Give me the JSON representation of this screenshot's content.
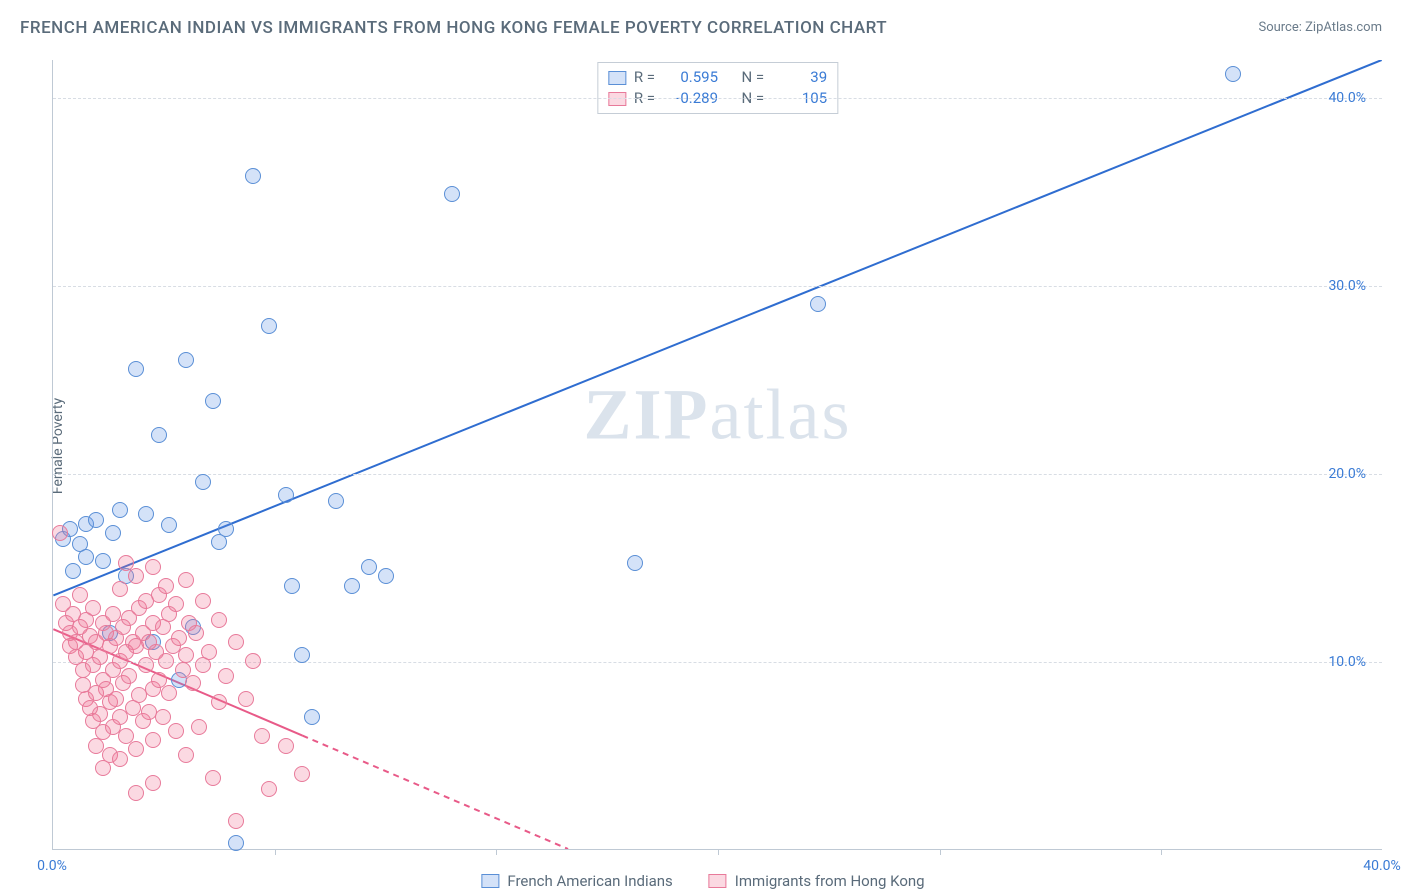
{
  "title": "FRENCH AMERICAN INDIAN VS IMMIGRANTS FROM HONG KONG FEMALE POVERTY CORRELATION CHART",
  "source": "Source: ZipAtlas.com",
  "ylabel": "Female Poverty",
  "watermark": {
    "bold": "ZIP",
    "light": "atlas"
  },
  "chart": {
    "type": "scatter",
    "xlim": [
      0,
      40
    ],
    "ylim": [
      0,
      42
    ],
    "yticks": [
      {
        "v": 10,
        "label": "10.0%"
      },
      {
        "v": 20,
        "label": "20.0%"
      },
      {
        "v": 30,
        "label": "30.0%"
      },
      {
        "v": 40,
        "label": "40.0%"
      }
    ],
    "xticks_major": [
      0,
      40
    ],
    "xtick_labels": [
      {
        "v": 0,
        "label": "0.0%"
      },
      {
        "v": 40,
        "label": "40.0%"
      }
    ],
    "xticks_minor": [
      6.67,
      13.33,
      20,
      26.67,
      33.33
    ],
    "grid_color": "#d8dde4",
    "axis_color": "#bfc9d4",
    "background_color": "#ffffff",
    "marker_radius": 8,
    "marker_stroke": 1,
    "series": [
      {
        "key": "blue",
        "label": "French American Indians",
        "fill": "rgba(100,150,230,0.28)",
        "stroke": "#5a8fd6",
        "R": "0.595",
        "N": "39",
        "trend": {
          "x1": 0,
          "y1": 13.5,
          "x2": 40,
          "y2": 42,
          "color": "#2f6dd0",
          "width": 2,
          "dash_after_x": null
        },
        "points": [
          [
            0.3,
            16.5
          ],
          [
            0.5,
            17.0
          ],
          [
            0.8,
            16.2
          ],
          [
            1.0,
            17.3
          ],
          [
            1.3,
            17.5
          ],
          [
            1.5,
            15.3
          ],
          [
            1.8,
            16.8
          ],
          [
            2.0,
            18.0
          ],
          [
            1.0,
            15.5
          ],
          [
            2.5,
            25.5
          ],
          [
            3.2,
            22.0
          ],
          [
            3.5,
            17.2
          ],
          [
            4.0,
            26.0
          ],
          [
            4.5,
            19.5
          ],
          [
            4.8,
            23.8
          ],
          [
            5.0,
            16.3
          ],
          [
            5.2,
            17.0
          ],
          [
            6.0,
            35.8
          ],
          [
            6.5,
            27.8
          ],
          [
            7.0,
            18.8
          ],
          [
            7.2,
            14.0
          ],
          [
            7.5,
            10.3
          ],
          [
            7.8,
            7.0
          ],
          [
            8.5,
            18.5
          ],
          [
            9.0,
            14.0
          ],
          [
            9.5,
            15.0
          ],
          [
            10.0,
            14.5
          ],
          [
            12.0,
            34.8
          ],
          [
            17.5,
            15.2
          ],
          [
            23.0,
            29.0
          ],
          [
            35.5,
            41.2
          ],
          [
            2.2,
            14.5
          ],
          [
            3.0,
            11.0
          ],
          [
            4.2,
            11.8
          ],
          [
            5.5,
            0.3
          ],
          [
            3.8,
            9.0
          ],
          [
            1.7,
            11.5
          ],
          [
            2.8,
            17.8
          ],
          [
            0.6,
            14.8
          ]
        ]
      },
      {
        "key": "pink",
        "label": "Immigrants from Hong Kong",
        "fill": "rgba(240,120,150,0.28)",
        "stroke": "#e87a9a",
        "R": "-0.289",
        "N": "105",
        "trend": {
          "x1": 0,
          "y1": 11.7,
          "x2": 15.5,
          "y2": 0,
          "color": "#e85a88",
          "width": 2,
          "dash_after_x": 7.5
        },
        "points": [
          [
            0.2,
            16.8
          ],
          [
            0.3,
            13.0
          ],
          [
            0.4,
            12.0
          ],
          [
            0.5,
            11.5
          ],
          [
            0.5,
            10.8
          ],
          [
            0.6,
            12.5
          ],
          [
            0.7,
            11.0
          ],
          [
            0.7,
            10.2
          ],
          [
            0.8,
            13.5
          ],
          [
            0.8,
            11.8
          ],
          [
            0.9,
            9.5
          ],
          [
            0.9,
            8.7
          ],
          [
            1.0,
            12.2
          ],
          [
            1.0,
            10.5
          ],
          [
            1.0,
            8.0
          ],
          [
            1.1,
            11.3
          ],
          [
            1.1,
            7.5
          ],
          [
            1.2,
            12.8
          ],
          [
            1.2,
            9.8
          ],
          [
            1.2,
            6.8
          ],
          [
            1.3,
            11.0
          ],
          [
            1.3,
            8.3
          ],
          [
            1.3,
            5.5
          ],
          [
            1.4,
            10.2
          ],
          [
            1.4,
            7.2
          ],
          [
            1.5,
            12.0
          ],
          [
            1.5,
            9.0
          ],
          [
            1.5,
            6.2
          ],
          [
            1.5,
            4.3
          ],
          [
            1.6,
            11.5
          ],
          [
            1.6,
            8.5
          ],
          [
            1.7,
            10.8
          ],
          [
            1.7,
            7.8
          ],
          [
            1.7,
            5.0
          ],
          [
            1.8,
            12.5
          ],
          [
            1.8,
            9.5
          ],
          [
            1.8,
            6.5
          ],
          [
            1.9,
            11.2
          ],
          [
            1.9,
            8.0
          ],
          [
            2.0,
            13.8
          ],
          [
            2.0,
            10.0
          ],
          [
            2.0,
            7.0
          ],
          [
            2.0,
            4.8
          ],
          [
            2.1,
            11.8
          ],
          [
            2.1,
            8.8
          ],
          [
            2.2,
            15.2
          ],
          [
            2.2,
            10.5
          ],
          [
            2.2,
            6.0
          ],
          [
            2.3,
            12.3
          ],
          [
            2.3,
            9.2
          ],
          [
            2.4,
            11.0
          ],
          [
            2.4,
            7.5
          ],
          [
            2.5,
            14.5
          ],
          [
            2.5,
            10.8
          ],
          [
            2.5,
            5.3
          ],
          [
            2.6,
            12.8
          ],
          [
            2.6,
            8.2
          ],
          [
            2.7,
            11.5
          ],
          [
            2.7,
            6.8
          ],
          [
            2.8,
            13.2
          ],
          [
            2.8,
            9.8
          ],
          [
            2.9,
            11.0
          ],
          [
            2.9,
            7.3
          ],
          [
            3.0,
            15.0
          ],
          [
            3.0,
            12.0
          ],
          [
            3.0,
            8.5
          ],
          [
            3.0,
            5.8
          ],
          [
            3.1,
            10.5
          ],
          [
            3.2,
            13.5
          ],
          [
            3.2,
            9.0
          ],
          [
            3.3,
            11.8
          ],
          [
            3.3,
            7.0
          ],
          [
            3.4,
            14.0
          ],
          [
            3.4,
            10.0
          ],
          [
            3.5,
            12.5
          ],
          [
            3.5,
            8.3
          ],
          [
            3.6,
            10.8
          ],
          [
            3.7,
            13.0
          ],
          [
            3.7,
            6.3
          ],
          [
            3.8,
            11.2
          ],
          [
            3.9,
            9.5
          ],
          [
            4.0,
            14.3
          ],
          [
            4.0,
            10.3
          ],
          [
            4.0,
            5.0
          ],
          [
            4.1,
            12.0
          ],
          [
            4.2,
            8.8
          ],
          [
            4.3,
            11.5
          ],
          [
            4.4,
            6.5
          ],
          [
            4.5,
            13.2
          ],
          [
            4.5,
            9.8
          ],
          [
            4.7,
            10.5
          ],
          [
            4.8,
            3.8
          ],
          [
            5.0,
            12.2
          ],
          [
            5.0,
            7.8
          ],
          [
            5.2,
            9.2
          ],
          [
            5.5,
            11.0
          ],
          [
            5.5,
            1.5
          ],
          [
            5.8,
            8.0
          ],
          [
            6.0,
            10.0
          ],
          [
            6.3,
            6.0
          ],
          [
            6.5,
            3.2
          ],
          [
            7.0,
            5.5
          ],
          [
            7.5,
            4.0
          ],
          [
            3.0,
            3.5
          ],
          [
            2.5,
            3.0
          ]
        ]
      }
    ]
  }
}
